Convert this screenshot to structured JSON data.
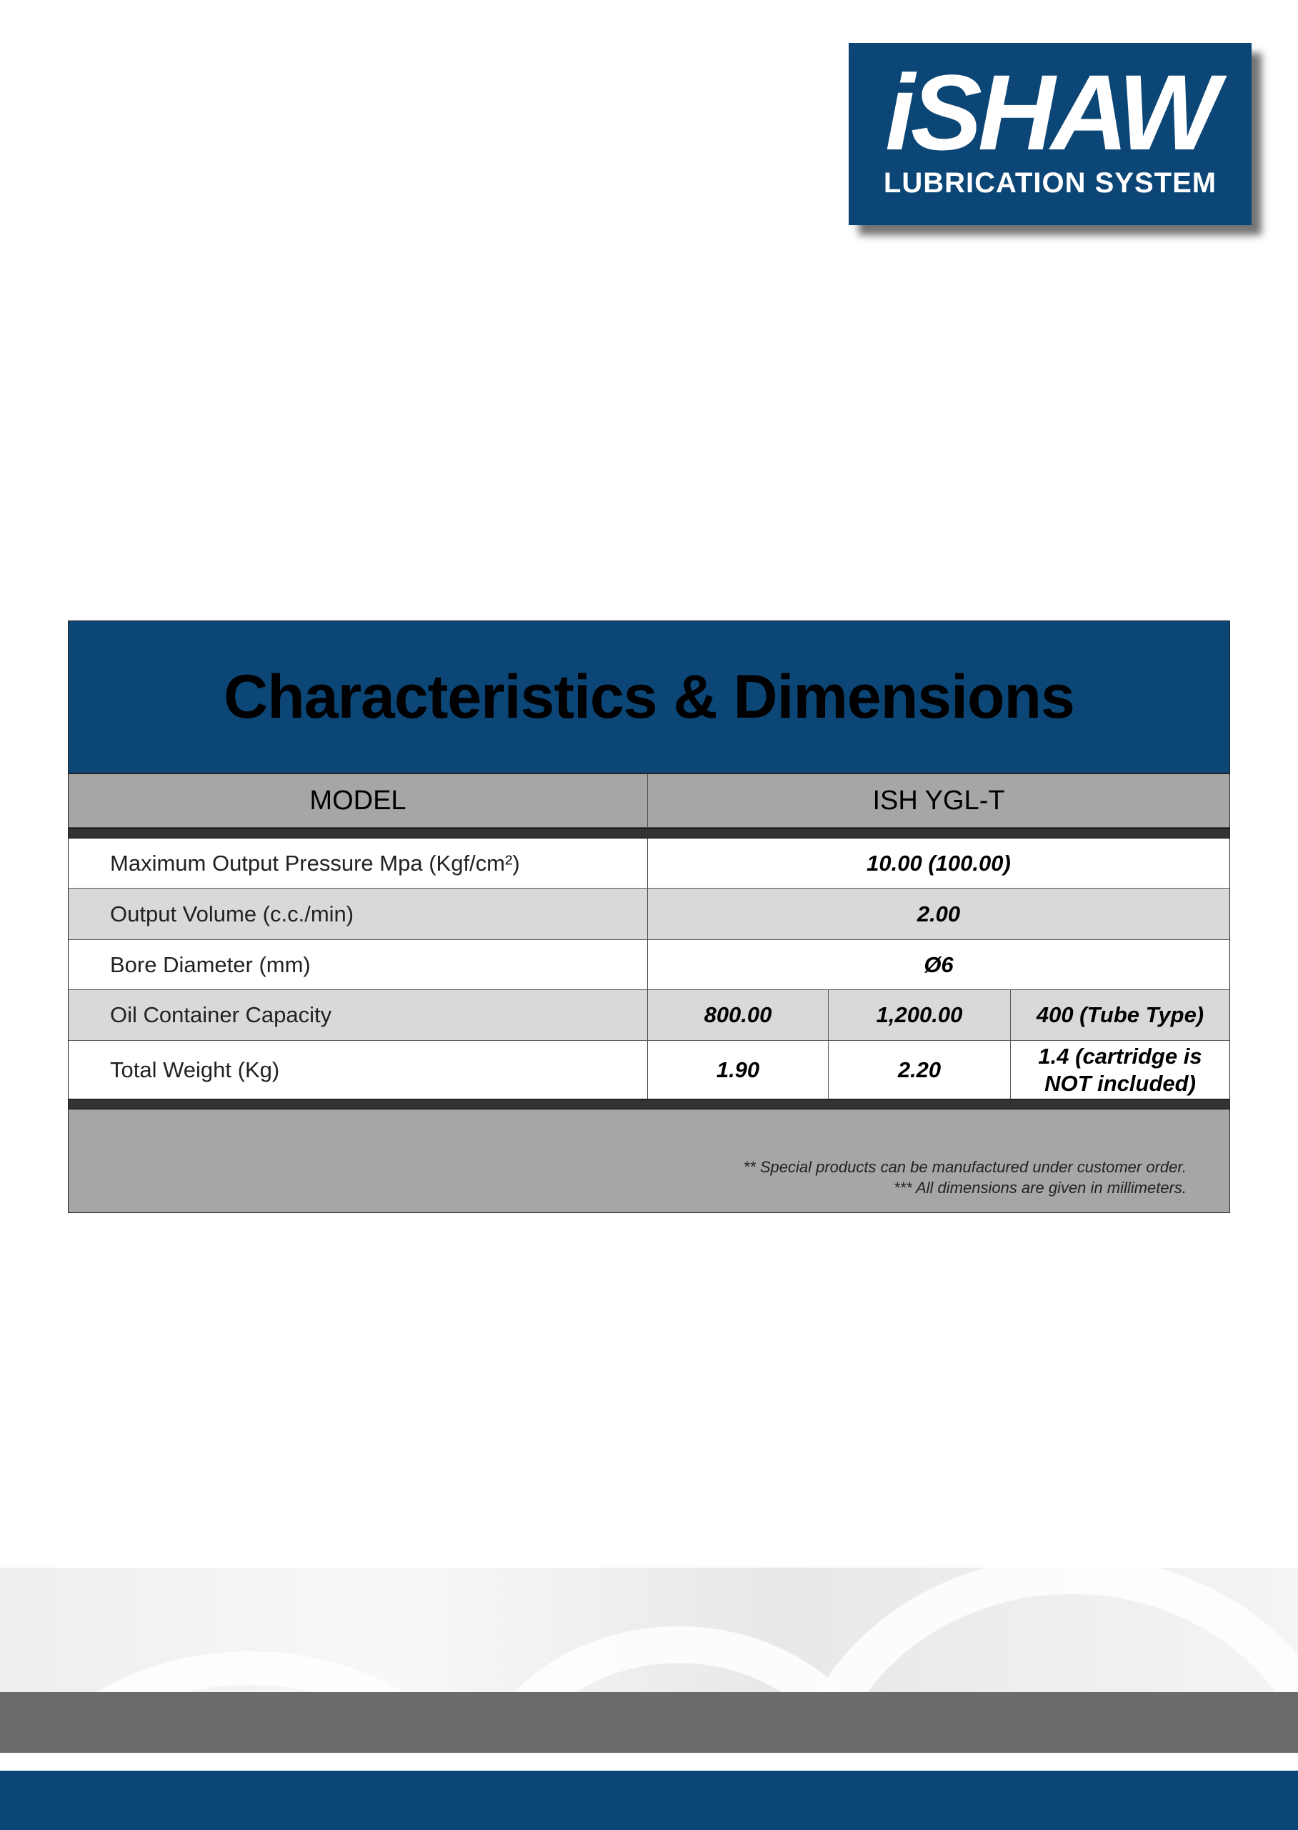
{
  "logo": {
    "brand": "iSHAW",
    "subtitle": "LUBRICATION SYSTEM"
  },
  "table": {
    "title": "Characteristics & Dimensions",
    "header": {
      "label": "MODEL",
      "model": "ISH YGL-T"
    },
    "rows": [
      {
        "label": "Maximum Output Pressure  Mpa (Kgf/cm²)",
        "values": [
          "10.00 (100.00)"
        ]
      },
      {
        "label": "Output Volume  (c.c./min)",
        "values": [
          "2.00"
        ]
      },
      {
        "label": "Bore Diameter  (mm)",
        "values": [
          "Ø6"
        ]
      },
      {
        "label": "Oil Container Capacity",
        "values": [
          "800.00",
          "1,200.00",
          "400 (Tube Type)"
        ]
      },
      {
        "label": "Total Weight  (Kg)",
        "values": [
          "1.90",
          "2.20",
          "1.4 (cartridge is NOT included)"
        ]
      }
    ],
    "notes": [
      "** Special products can be manufactured under customer order.",
      "*** All dimensions are given in millimeters."
    ]
  },
  "colors": {
    "navy": "#0b4676",
    "header_gray": "#a6a6a6",
    "row_gray": "#d9d9d9"
  }
}
